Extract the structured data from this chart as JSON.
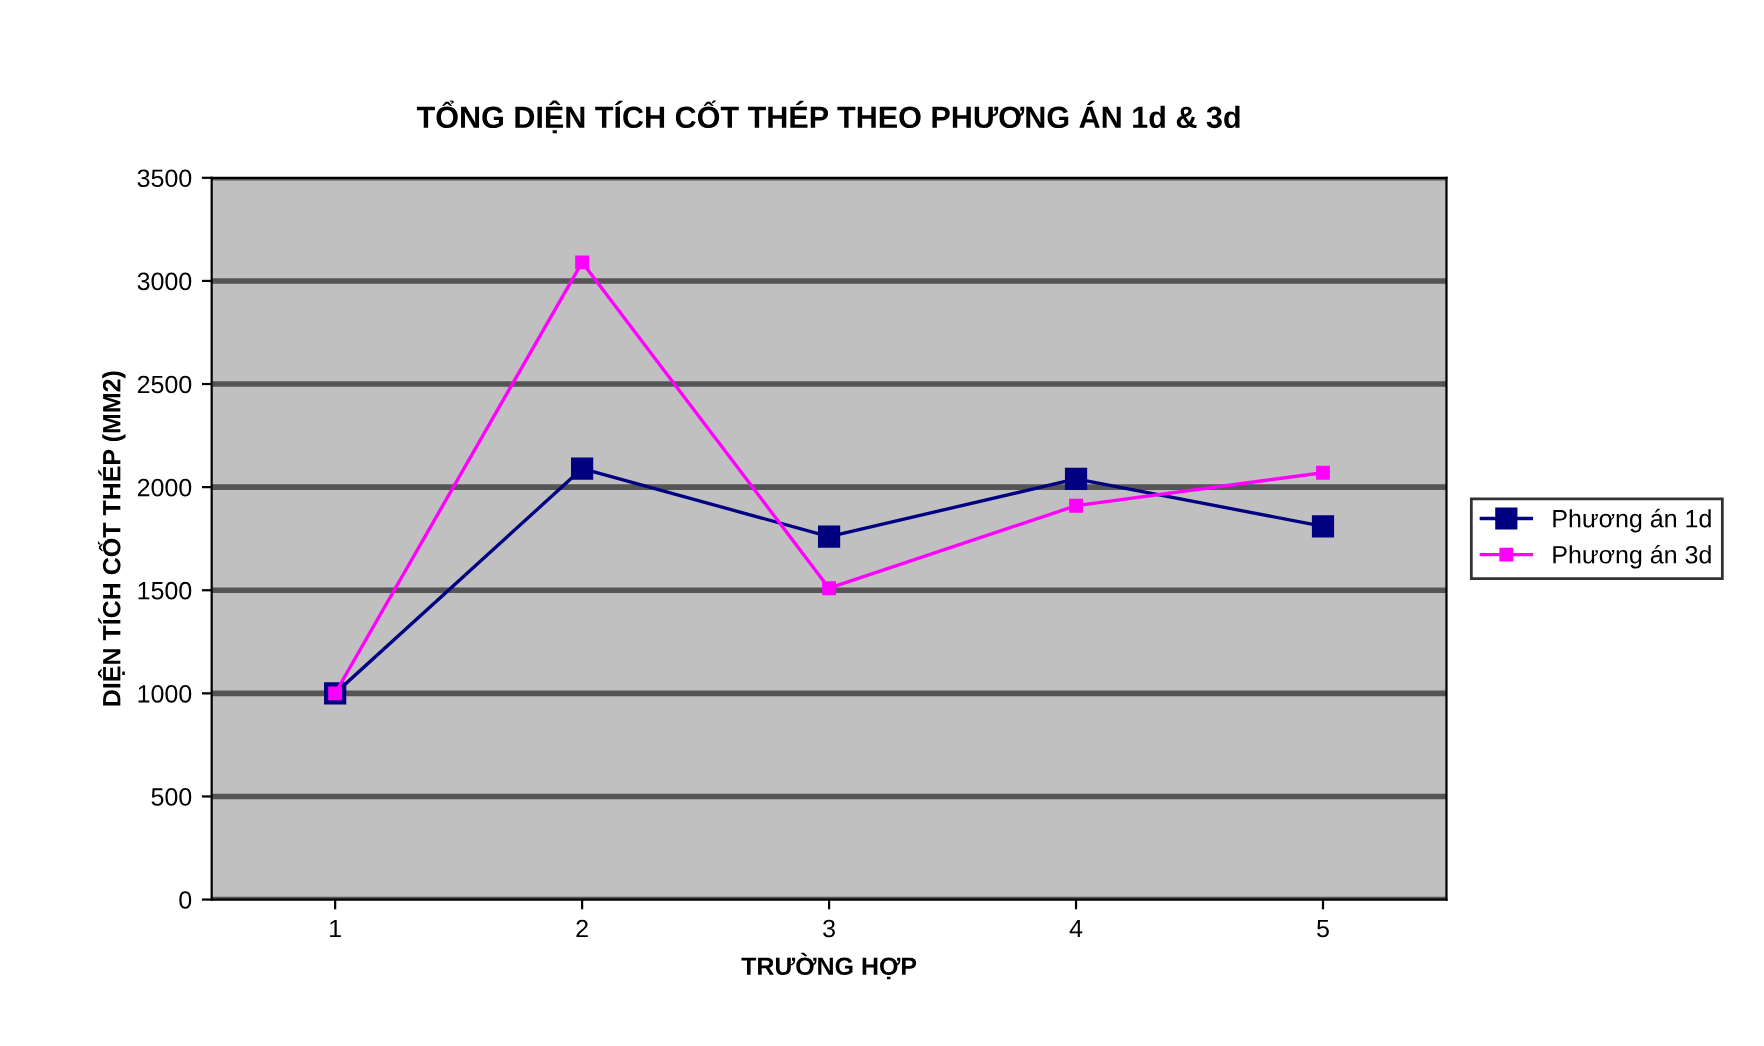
{
  "chart_data": {
    "type": "line",
    "title": "TỔNG DIỆN TÍCH CỐT THÉP THEO PHƯƠNG ÁN 1d & 3d",
    "xlabel": "TRƯỜNG HỢP",
    "ylabel": "DIỆN TÍCH CỐT THÉP (MM2)",
    "categories": [
      "1",
      "2",
      "3",
      "4",
      "5"
    ],
    "series": [
      {
        "name": "Phương án 1d",
        "color": "#000080",
        "values": [
          1000,
          2090,
          1760,
          2040,
          1810
        ]
      },
      {
        "name": "Phương án 3d",
        "color": "#ff00ff",
        "values": [
          1000,
          3090,
          1510,
          1910,
          2070
        ]
      }
    ],
    "ylim": [
      0,
      3500
    ],
    "yticks": [
      0,
      500,
      1000,
      1500,
      2000,
      2500,
      3000,
      3500
    ],
    "grid": "y",
    "legend": "right",
    "marker": "square",
    "line_style": "solid"
  }
}
